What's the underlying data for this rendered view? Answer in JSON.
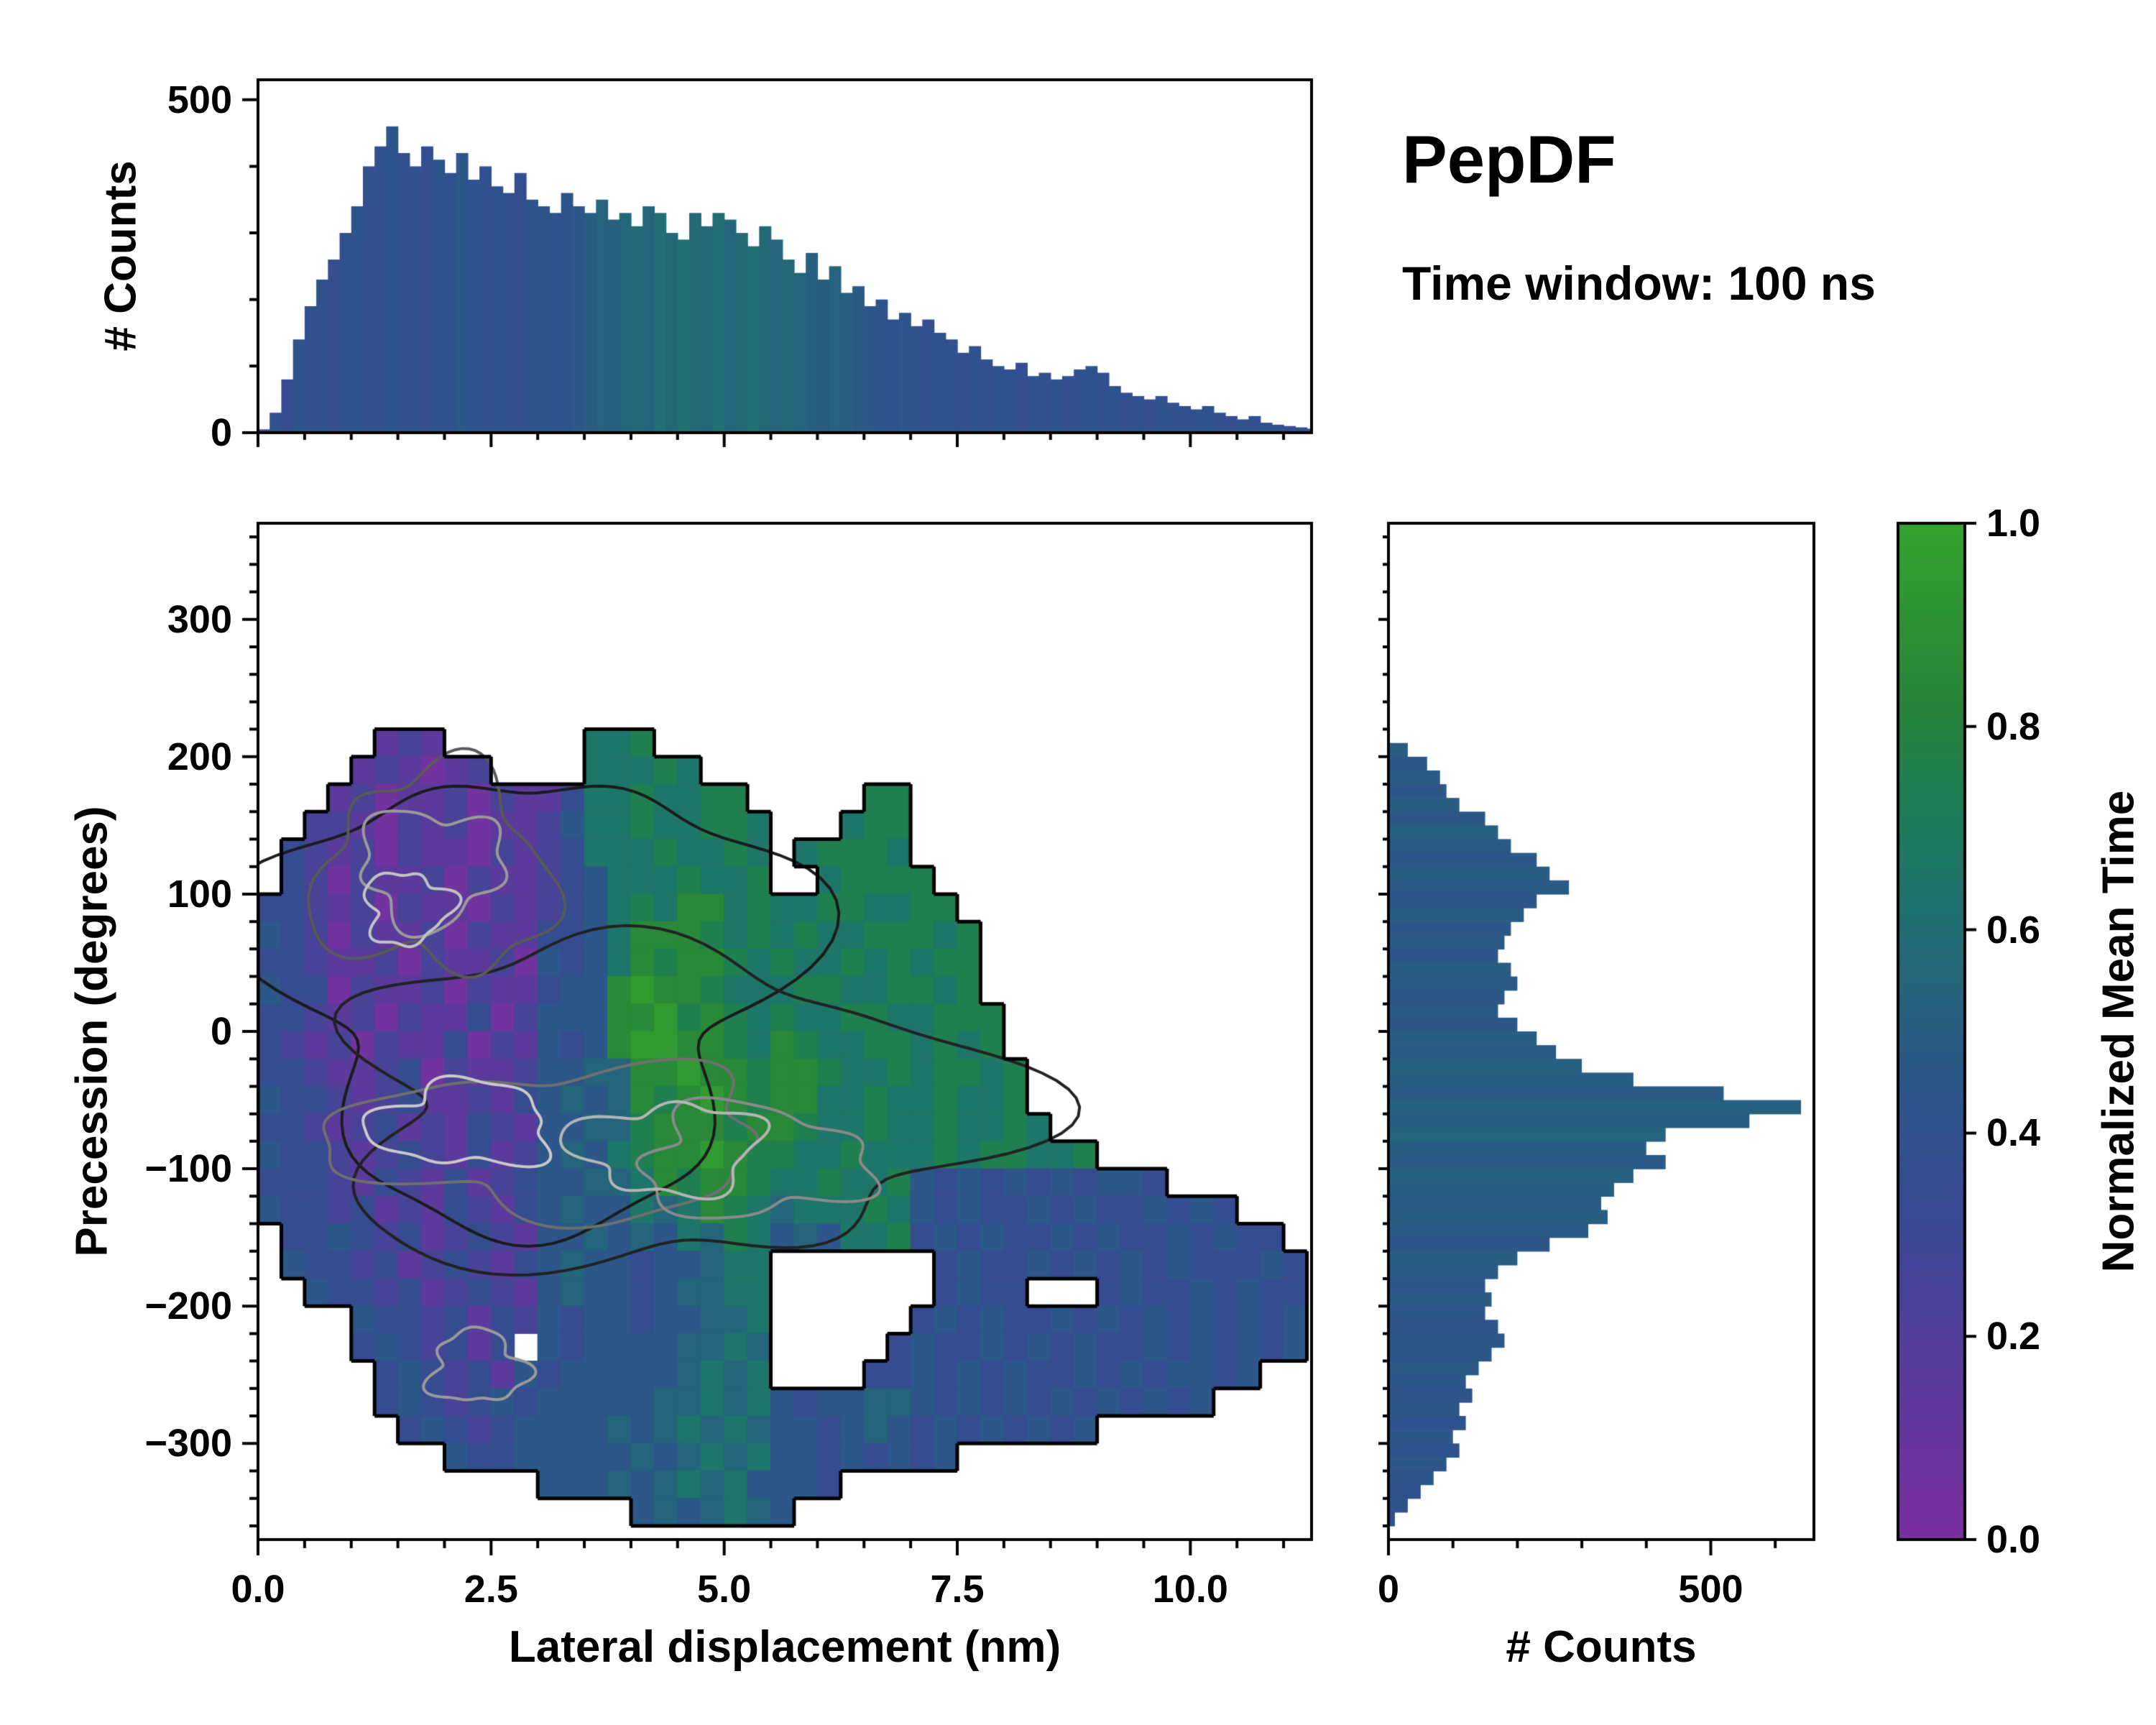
{
  "header": {
    "title": "PepDF",
    "subtitle": "Time window: 100 ns"
  },
  "chart_data": {
    "type": "heatmap",
    "description": "2D histogram of precession vs lateral displacement colored by normalized mean time, with marginal count histograms and colorbar",
    "labels": {
      "top_ylabel": "# Counts",
      "main_xlabel": "Lateral displacement (nm)",
      "main_ylabel": "Precession (degrees)",
      "right_xlabel": "# Counts"
    },
    "colormap": {
      "label": "Normalized Mean Time",
      "range": [
        0,
        1
      ],
      "ticks": [
        {
          "v": 0.0,
          "label": "0.0"
        },
        {
          "v": 0.2,
          "label": "0.2"
        },
        {
          "v": 0.4,
          "label": "0.4"
        },
        {
          "v": 0.6,
          "label": "0.6"
        },
        {
          "v": 0.8,
          "label": "0.8"
        },
        {
          "v": 1.0,
          "label": "1.0"
        }
      ],
      "stops": [
        [
          0.0,
          "#7c2fa0"
        ],
        [
          0.15,
          "#5c3a9b"
        ],
        [
          0.3,
          "#3c4794"
        ],
        [
          0.42,
          "#2e538c"
        ],
        [
          0.52,
          "#28607f"
        ],
        [
          0.62,
          "#1f7170"
        ],
        [
          0.72,
          "#1d7d58"
        ],
        [
          0.82,
          "#27833a"
        ],
        [
          1.0,
          "#35a42e"
        ]
      ]
    },
    "top_marginal": {
      "type": "bar",
      "ylabel": "# Counts",
      "x_range": [
        0,
        11.3
      ],
      "y_range": [
        0,
        530
      ],
      "bin_start": 0,
      "bin_width": 0.125,
      "yticks": [
        {
          "v": 0,
          "label": "0"
        },
        {
          "v": 500,
          "label": "500"
        }
      ],
      "xtick_marks": [
        0,
        2.5,
        5,
        7.5,
        10
      ],
      "values": [
        5,
        30,
        80,
        140,
        190,
        230,
        260,
        300,
        340,
        400,
        430,
        460,
        420,
        400,
        430,
        410,
        390,
        420,
        380,
        400,
        370,
        360,
        390,
        350,
        340,
        330,
        360,
        340,
        330,
        350,
        320,
        330,
        310,
        340,
        330,
        300,
        290,
        330,
        310,
        330,
        320,
        300,
        280,
        310,
        290,
        260,
        240,
        270,
        230,
        250,
        210,
        220,
        190,
        200,
        170,
        180,
        160,
        170,
        150,
        140,
        120,
        130,
        110,
        100,
        95,
        105,
        85,
        90,
        80,
        85,
        95,
        100,
        90,
        70,
        60,
        55,
        50,
        55,
        45,
        40,
        35,
        40,
        30,
        25,
        20,
        25,
        15,
        12,
        10,
        8,
        6,
        4
      ],
      "color_values": [
        0.38,
        0.4,
        0.36,
        0.42,
        0.39,
        0.41,
        0.37,
        0.4,
        0.42,
        0.38,
        0.4,
        0.43,
        0.39,
        0.41,
        0.38,
        0.42,
        0.4,
        0.44,
        0.41,
        0.39,
        0.42,
        0.4,
        0.38,
        0.41,
        0.43,
        0.4,
        0.42,
        0.45,
        0.5,
        0.54,
        0.52,
        0.56,
        0.58,
        0.55,
        0.6,
        0.57,
        0.62,
        0.58,
        0.56,
        0.6,
        0.55,
        0.58,
        0.61,
        0.57,
        0.54,
        0.58,
        0.55,
        0.52,
        0.5,
        0.53,
        0.51,
        0.48,
        0.45,
        0.42,
        0.4,
        0.43,
        0.41,
        0.39,
        0.42,
        0.4,
        0.38,
        0.41,
        0.39,
        0.42,
        0.4,
        0.37,
        0.41,
        0.39,
        0.42,
        0.38,
        0.4,
        0.42,
        0.39,
        0.41,
        0.38,
        0.4,
        0.37,
        0.41,
        0.39,
        0.38,
        0.4,
        0.42,
        0.39,
        0.37,
        0.4,
        0.38,
        0.41,
        0.39,
        0.37,
        0.4,
        0.38,
        0.39
      ]
    },
    "right_marginal": {
      "type": "bar",
      "orientation": "horizontal",
      "xlabel": "# Counts",
      "x_range": [
        0,
        660
      ],
      "y_range": [
        -370,
        370
      ],
      "bin_start": 360,
      "bin_width": 10,
      "xticks": [
        {
          "v": 0,
          "label": "0"
        },
        {
          "v": 500,
          "label": "500"
        }
      ],
      "ytick_marks": [
        300,
        200,
        100,
        0,
        -100,
        -200,
        -300
      ],
      "values": [
        0,
        0,
        0,
        0,
        0,
        0,
        0,
        0,
        0,
        0,
        0,
        0,
        0,
        0,
        0,
        30,
        60,
        80,
        90,
        110,
        150,
        170,
        190,
        230,
        250,
        280,
        230,
        210,
        190,
        180,
        170,
        190,
        200,
        180,
        170,
        200,
        230,
        260,
        300,
        380,
        520,
        640,
        560,
        430,
        400,
        430,
        380,
        350,
        330,
        340,
        310,
        250,
        200,
        170,
        150,
        160,
        150,
        170,
        180,
        160,
        140,
        120,
        130,
        110,
        120,
        100,
        110,
        90,
        70,
        50,
        30,
        10
      ],
      "color_values": [
        0.45,
        0.45,
        0.45,
        0.45,
        0.45,
        0.45,
        0.45,
        0.45,
        0.45,
        0.45,
        0.45,
        0.45,
        0.45,
        0.45,
        0.45,
        0.5,
        0.45,
        0.48,
        0.44,
        0.5,
        0.46,
        0.52,
        0.48,
        0.45,
        0.5,
        0.47,
        0.44,
        0.5,
        0.46,
        0.48,
        0.45,
        0.5,
        0.47,
        0.45,
        0.48,
        0.46,
        0.5,
        0.48,
        0.52,
        0.5,
        0.48,
        0.52,
        0.5,
        0.55,
        0.5,
        0.48,
        0.52,
        0.5,
        0.47,
        0.5,
        0.48,
        0.45,
        0.5,
        0.47,
        0.45,
        0.48,
        0.45,
        0.43,
        0.46,
        0.44,
        0.47,
        0.45,
        0.43,
        0.45,
        0.42,
        0.44,
        0.42,
        0.45,
        0.43,
        0.4,
        0.42,
        0.4
      ]
    },
    "heatmap": {
      "x_range": [
        0,
        11.3
      ],
      "y_range": [
        -370,
        370
      ],
      "xticks": [
        {
          "v": 0,
          "label": "0.0"
        },
        {
          "v": 2.5,
          "label": "2.5"
        },
        {
          "v": 5,
          "label": "5.0"
        },
        {
          "v": 7.5,
          "label": "7.5"
        },
        {
          "v": 10,
          "label": "10.0"
        }
      ],
      "yticks": [
        {
          "v": 300,
          "label": "300"
        },
        {
          "v": 200,
          "label": "200"
        },
        {
          "v": 100,
          "label": "100"
        },
        {
          "v": 0,
          "label": "0"
        },
        {
          "v": -100,
          "label": "−100"
        },
        {
          "v": -200,
          "label": "−200"
        },
        {
          "v": -300,
          "label": "−300"
        }
      ],
      "grid_x0": 0,
      "grid_dx": 0.25,
      "grid_y0": 360,
      "grid_dy": 20,
      "value_scale": "digit d maps to normalized mean time (d+0.5)/10, '.' means empty bin",
      "grid": [
        "..............................................",
        "..............................................",
        "..............................................",
        "..............................................",
        "..............................................",
        "..............................................",
        "..............................................",
        ".....121......667.............................",
        "....121012....66676...........................",
        "...120112021136676677.....77..................",
        "..22102120112466766776...677..................",
        ".321202110212366676676.67776..................",
        ".320211202112346667667..67777.................",
        "332120211021234676886766776677................",
        "4320211202113346888767676677767...............",
        "3321120211204346878876766767677...............",
        "4330211202113448988766677667767...............",
        "33212021130244488978767667766777..............",
        "32120211302143489988768766776767..............",
        "332112302112445588988788766767767.............",
        "433212311213454587898788667667667.............",
        "3321231213214455788878876676676676............",
        "433212321312454678898776676667677667..........",
        "333213213123445568788766766743434343443.......",
        "433231213213454465687656667643433434334343....",
        ".3343231232144545465764546673434334343343433..",
        ".433231232134544344566.......3433434343433343.",
        "..43323123214544345566.......3433...343343433.",
        "....433231324344344556......34343343434343434.",
        "....3432313.4344445565.....343343434334343434.",
        ".....34323143444445656....33434343343434434...",
        ".....343234344444556564344554343434343434.....",
        "......343234444545656544345434343434..........",
        "........4334444454565644343434................",
        "............4445456564443.....................",
        "................4545654......................."
      ],
      "contours": [
        {
          "cx": 2.9,
          "cy": 30,
          "rx": 2.7,
          "ry": 165,
          "color": "#1b1b1b",
          "width": 4
        },
        {
          "cx": 4.3,
          "cy": -55,
          "rx": 3.5,
          "ry": 115,
          "color": "#222222",
          "width": 4
        },
        {
          "cx": 1.9,
          "cy": 115,
          "rx": 1.25,
          "ry": 72,
          "color": "#5a5a5a",
          "width": 4
        },
        {
          "cx": 3.2,
          "cy": -80,
          "rx": 2.3,
          "ry": 52,
          "color": "#6f6f6f",
          "width": 4
        },
        {
          "cx": 1.85,
          "cy": 120,
          "rx": 0.75,
          "ry": 42,
          "color": "#9a9a9a",
          "width": 4
        },
        {
          "cx": 5.3,
          "cy": -95,
          "rx": 1.2,
          "ry": 40,
          "color": "#8a8a8a",
          "width": 4
        },
        {
          "cx": 2.2,
          "cy": -68,
          "rx": 0.95,
          "ry": 30,
          "color": "#c9c9c9",
          "width": 4
        },
        {
          "cx": 4.4,
          "cy": -85,
          "rx": 1.0,
          "ry": 32,
          "color": "#b5b5b5",
          "width": 4
        },
        {
          "cx": 1.6,
          "cy": 90,
          "rx": 0.45,
          "ry": 26,
          "color": "#c3c3c3",
          "width": 4
        },
        {
          "cx": 2.35,
          "cy": -245,
          "rx": 0.5,
          "ry": 26,
          "color": "#9a9a9a",
          "width": 4
        }
      ]
    }
  }
}
